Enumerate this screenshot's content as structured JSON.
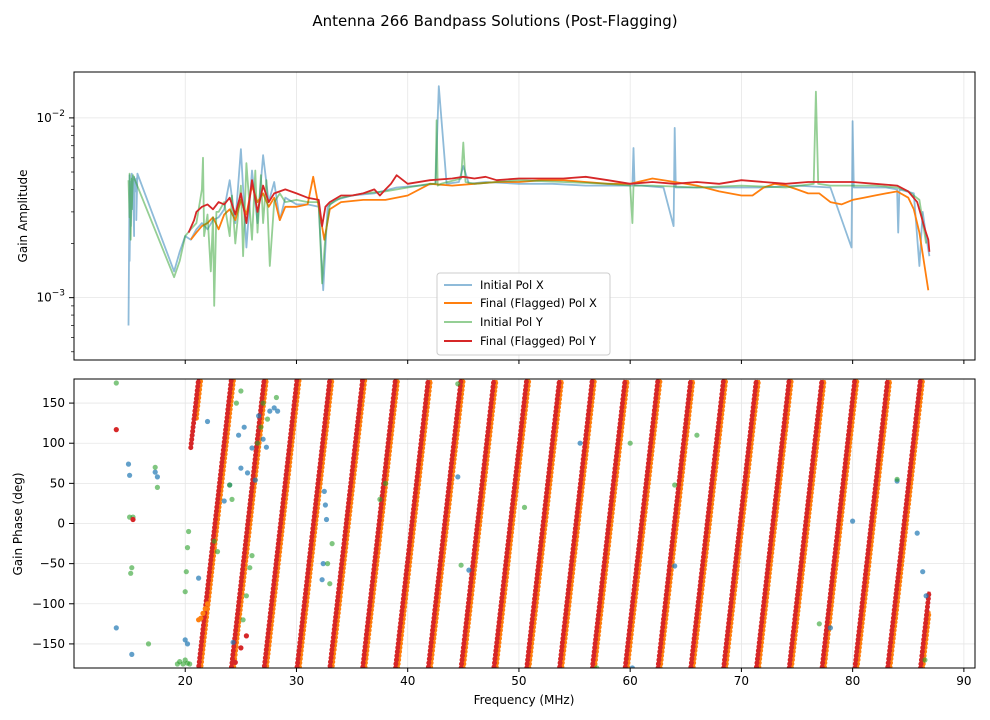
{
  "figure": {
    "title": "Antenna 266 Bandpass Solutions (Post-Flagging)"
  },
  "colors": {
    "initial_x": "#1f77b4",
    "final_x": "#ff7f0e",
    "initial_y": "#2ca02c",
    "final_y": "#d62728",
    "grid": "#e6e6e6",
    "axis": "#000000"
  },
  "chart_data": [
    {
      "type": "line",
      "panel": "amplitude",
      "xlabel": "",
      "ylabel": "Gain Amplitude",
      "xlim": [
        10,
        91
      ],
      "ylim": [
        0.00045,
        0.018
      ],
      "yscale": "log",
      "grid": true,
      "xticks": [
        20,
        30,
        40,
        50,
        60,
        70,
        80,
        90
      ],
      "yticks": [
        {
          "value": 0.001,
          "base": "10",
          "exp": "−3"
        },
        {
          "value": 0.01,
          "base": "10",
          "exp": "−2"
        }
      ],
      "legend": {
        "position": "lower-center",
        "entries": [
          "Initial Pol X",
          "Final (Flagged) Pol X",
          "Initial Pol Y",
          "Final (Flagged) Pol Y"
        ]
      },
      "series": [
        {
          "name": "Initial Pol X",
          "alpha": 0.5,
          "x": [
            14.9,
            15.0,
            15.0,
            15.1,
            15.1,
            15.2,
            15.3,
            15.3,
            15.4,
            15.4,
            15.5,
            15.6,
            15.6,
            15.7,
            19.0,
            19.5,
            20.0,
            20.5,
            21.0,
            21.5,
            22.0,
            22.5,
            23.0,
            23.5,
            24.0,
            24.5,
            25.0,
            25.5,
            26.0,
            26.5,
            27.0,
            27.5,
            28.0,
            28.5,
            29.0,
            30.0,
            31.0,
            32.0,
            32.4,
            32.8,
            33.5,
            35.0,
            37.0,
            39.0,
            41.0,
            42.5,
            42.8,
            43.5,
            44.6,
            45.0,
            45.5,
            47.0,
            50.0,
            53.0,
            56.0,
            59.0,
            60.2,
            60.3,
            60.4,
            61.0,
            63.0,
            63.9,
            64.0,
            64.1,
            66.0,
            69.0,
            72.0,
            75.0,
            78.0,
            79.9,
            80.0,
            80.1,
            81.0,
            83.0,
            84.0,
            84.1,
            84.2,
            85.5,
            86.0,
            86.3,
            86.6,
            86.9
          ],
          "y": [
            0.0007,
            0.0048,
            0.0016,
            0.0044,
            0.0025,
            0.0049,
            0.0031,
            0.0045,
            0.0022,
            0.0047,
            0.0039,
            0.0046,
            0.0027,
            0.0049,
            0.0014,
            0.0018,
            0.0022,
            0.0021,
            0.0024,
            0.0026,
            0.0024,
            0.0027,
            0.0028,
            0.0031,
            0.0045,
            0.0026,
            0.0067,
            0.0019,
            0.0051,
            0.0026,
            0.0062,
            0.0034,
            0.0044,
            0.0027,
            0.0036,
            0.0033,
            0.0033,
            0.0032,
            0.0011,
            0.0032,
            0.0035,
            0.0037,
            0.0038,
            0.0041,
            0.0042,
            0.0043,
            0.015,
            0.0043,
            0.0044,
            0.0054,
            0.0043,
            0.0044,
            0.0043,
            0.0043,
            0.0042,
            0.0042,
            0.0042,
            0.0068,
            0.0042,
            0.0042,
            0.0041,
            0.0025,
            0.0088,
            0.0041,
            0.0041,
            0.0041,
            0.0041,
            0.0042,
            0.0041,
            0.0019,
            0.0096,
            0.0041,
            0.0041,
            0.0041,
            0.004,
            0.0023,
            0.004,
            0.0038,
            0.0015,
            0.003,
            0.0022,
            0.0017
          ]
        },
        {
          "name": "Final (Flagged) Pol X",
          "alpha": 1.0,
          "x": [
            20.5,
            21.0,
            21.5,
            22.0,
            22.5,
            23.0,
            23.5,
            24.0,
            24.5,
            25.0,
            25.5,
            26.0,
            26.5,
            27.0,
            27.5,
            28.0,
            28.5,
            29.0,
            30.0,
            31.0,
            31.5,
            32.0,
            32.5,
            33.0,
            34.0,
            36.0,
            38.0,
            40.0,
            42.0,
            44.0,
            46.0,
            48.0,
            50.0,
            52.0,
            54.0,
            56.0,
            58.0,
            60.0,
            62.0,
            64.0,
            66.0,
            68.0,
            70.0,
            71.0,
            72.0,
            73.0,
            74.0,
            75.0,
            76.0,
            77.0,
            78.0,
            79.0,
            80.0,
            81.0,
            82.0,
            83.0,
            84.0,
            85.0,
            85.5,
            86.0,
            86.4,
            86.8
          ],
          "y": [
            0.0021,
            0.0023,
            0.0025,
            0.0026,
            0.0028,
            0.0024,
            0.0029,
            0.0031,
            0.0027,
            0.0035,
            0.0029,
            0.0042,
            0.0034,
            0.0038,
            0.0032,
            0.0036,
            0.0027,
            0.0032,
            0.0032,
            0.0033,
            0.0047,
            0.0032,
            0.0021,
            0.0031,
            0.0034,
            0.0035,
            0.0035,
            0.0037,
            0.0043,
            0.0042,
            0.0043,
            0.0044,
            0.0044,
            0.0045,
            0.0045,
            0.0044,
            0.0043,
            0.0043,
            0.0046,
            0.0044,
            0.0042,
            0.0039,
            0.0037,
            0.0037,
            0.0041,
            0.0043,
            0.0042,
            0.004,
            0.0038,
            0.0038,
            0.0034,
            0.0033,
            0.0035,
            0.0036,
            0.0037,
            0.0038,
            0.0039,
            0.0036,
            0.0031,
            0.0023,
            0.0016,
            0.0011
          ]
        },
        {
          "name": "Initial Pol Y",
          "alpha": 0.5,
          "x": [
            14.9,
            15.0,
            15.0,
            15.1,
            15.2,
            15.2,
            15.3,
            19.0,
            19.5,
            20.0,
            20.5,
            21.0,
            21.5,
            21.6,
            21.7,
            22.0,
            22.3,
            22.5,
            22.6,
            22.8,
            23.0,
            23.5,
            24.0,
            24.2,
            24.5,
            25.0,
            25.2,
            25.5,
            26.0,
            26.3,
            26.5,
            26.8,
            27.0,
            27.3,
            27.6,
            28.0,
            28.5,
            29.0,
            30.0,
            31.0,
            32.0,
            32.3,
            32.6,
            33.0,
            34.0,
            36.0,
            38.0,
            40.0,
            42.0,
            42.5,
            42.6,
            42.7,
            43.0,
            44.8,
            45.0,
            45.2,
            46.0,
            48.0,
            50.0,
            54.0,
            58.0,
            60.0,
            60.2,
            60.3,
            60.4,
            62.0,
            66.0,
            70.0,
            74.0,
            76.5,
            76.7,
            76.9,
            78.0,
            80.0,
            82.0,
            84.0,
            85.0,
            86.0,
            86.6
          ],
          "y": [
            0.0045,
            0.0028,
            0.0049,
            0.0021,
            0.0046,
            0.0031,
            0.0048,
            0.0013,
            0.0016,
            0.0022,
            0.0024,
            0.0026,
            0.004,
            0.006,
            0.0022,
            0.0029,
            0.0014,
            0.0028,
            0.0009,
            0.003,
            0.003,
            0.0034,
            0.0022,
            0.0037,
            0.002,
            0.0042,
            0.0017,
            0.0056,
            0.0021,
            0.0051,
            0.0023,
            0.0048,
            0.0026,
            0.0045,
            0.0015,
            0.0034,
            0.0038,
            0.0034,
            0.0035,
            0.0034,
            0.0034,
            0.0012,
            0.0022,
            0.0033,
            0.0036,
            0.0038,
            0.0039,
            0.0041,
            0.0043,
            0.0043,
            0.0097,
            0.0042,
            0.0043,
            0.0046,
            0.0073,
            0.0044,
            0.0043,
            0.0044,
            0.0045,
            0.0044,
            0.0043,
            0.0042,
            0.0026,
            0.0042,
            0.0042,
            0.0042,
            0.0041,
            0.0042,
            0.0041,
            0.0043,
            0.014,
            0.0043,
            0.0042,
            0.0042,
            0.0042,
            0.0041,
            0.0039,
            0.0035,
            0.002
          ]
        },
        {
          "name": "Final (Flagged) Pol Y",
          "alpha": 1.0,
          "x": [
            20.3,
            20.8,
            21.0,
            21.5,
            22.0,
            22.5,
            23.0,
            23.5,
            24.0,
            24.5,
            25.0,
            25.5,
            26.0,
            26.5,
            27.0,
            27.5,
            28.0,
            29.0,
            30.0,
            31.0,
            32.0,
            32.3,
            32.6,
            33.0,
            34.0,
            35.0,
            36.0,
            37.0,
            37.5,
            38.0,
            38.5,
            39.0,
            40.0,
            42.0,
            44.0,
            45.0,
            46.0,
            47.0,
            48.0,
            50.0,
            52.0,
            54.0,
            56.0,
            58.0,
            60.0,
            62.0,
            64.0,
            66.0,
            68.0,
            70.0,
            72.0,
            74.0,
            76.0,
            78.0,
            80.0,
            82.0,
            84.0,
            85.0,
            85.8,
            86.2,
            86.5,
            86.8,
            86.9
          ],
          "y": [
            0.0023,
            0.0027,
            0.003,
            0.0032,
            0.0033,
            0.0031,
            0.0034,
            0.0033,
            0.0036,
            0.0029,
            0.0038,
            0.0026,
            0.0045,
            0.003,
            0.0042,
            0.0034,
            0.0038,
            0.004,
            0.0038,
            0.0036,
            0.0035,
            0.0025,
            0.0032,
            0.0034,
            0.0037,
            0.0037,
            0.0038,
            0.004,
            0.0037,
            0.004,
            0.0043,
            0.0048,
            0.0043,
            0.0045,
            0.0046,
            0.0047,
            0.0046,
            0.0047,
            0.0045,
            0.0046,
            0.0046,
            0.0046,
            0.0047,
            0.0045,
            0.0043,
            0.0044,
            0.0043,
            0.0044,
            0.0043,
            0.0045,
            0.0044,
            0.0043,
            0.0044,
            0.0044,
            0.0044,
            0.0043,
            0.0042,
            0.0039,
            0.0034,
            0.0028,
            0.0024,
            0.0021,
            0.0018
          ]
        }
      ]
    },
    {
      "type": "scatter",
      "panel": "phase",
      "xlabel": "Frequency (MHz)",
      "ylabel": "Gain Phase (deg)",
      "xlim": [
        10,
        91
      ],
      "ylim": [
        -180,
        180
      ],
      "grid": true,
      "xticks": [
        20,
        30,
        40,
        50,
        60,
        70,
        80,
        90
      ],
      "yticks": [
        -150,
        -100,
        -50,
        0,
        50,
        100,
        150
      ],
      "phase_wrap_lines": {
        "final_x": {
          "f0": 21.4,
          "period_mhz": 2.95,
          "f_start": 21.0,
          "f_end": 86.9
        },
        "final_y": {
          "f0": 21.2,
          "period_mhz": 2.95,
          "f_start": 20.5,
          "f_end": 86.9
        }
      },
      "series": [
        {
          "name": "Initial Pol X",
          "alpha": 0.7,
          "x": [
            13.8,
            14.9,
            15.0,
            15.2,
            17.3,
            17.5,
            20.0,
            20.2,
            21.2,
            22.0,
            23.5,
            24.0,
            24.3,
            24.8,
            25.0,
            25.3,
            25.6,
            26.0,
            26.3,
            26.6,
            27.0,
            27.3,
            27.6,
            28.0,
            28.3,
            32.5,
            32.6,
            32.7,
            32.3,
            32.4,
            44.5,
            45.5,
            55.5,
            60.2,
            64.0,
            78.0,
            80.0,
            84.0,
            85.8,
            86.3,
            86.6
          ],
          "y": [
            -130,
            74,
            60,
            -163,
            64,
            58,
            -145,
            -150,
            -68,
            127,
            28,
            48,
            -148,
            110,
            69,
            120,
            63,
            94,
            54,
            134,
            105,
            95,
            140,
            144,
            140,
            40,
            23,
            5,
            -70,
            -50,
            58,
            -58,
            100,
            -180,
            -53,
            -130,
            3,
            53,
            -12,
            -60,
            -90
          ]
        },
        {
          "name": "Final (Flagged) Pol X",
          "alpha": 1.0,
          "x": [
            21.2,
            21.4,
            21.6,
            21.8,
            22.0
          ],
          "y": [
            -120,
            -118,
            -112,
            -106,
            -100
          ]
        },
        {
          "name": "Initial Pol Y",
          "alpha": 0.6,
          "x": [
            13.8,
            15.0,
            15.1,
            15.2,
            15.3,
            16.7,
            17.3,
            17.5,
            19.3,
            19.5,
            19.8,
            20.0,
            20.2,
            20.4,
            20.0,
            20.1,
            20.2,
            20.3,
            22.6,
            22.9,
            24.0,
            24.2,
            24.6,
            25.0,
            25.2,
            25.5,
            25.8,
            26.0,
            26.5,
            26.8,
            27.0,
            27.4,
            28.2,
            32.8,
            33.0,
            33.2,
            37.5,
            38.0,
            44.5,
            44.8,
            50.5,
            57.0,
            60.0,
            64.0,
            66.0,
            77.0,
            84.0,
            86.5
          ],
          "y": [
            175,
            8,
            -62,
            -55,
            8,
            -150,
            70,
            45,
            -175,
            -172,
            -175,
            -170,
            -174,
            -175,
            -85,
            -60,
            -30,
            -10,
            -22,
            -35,
            48,
            30,
            150,
            165,
            -120,
            -90,
            -55,
            -40,
            100,
            120,
            150,
            130,
            157,
            -50,
            -75,
            -25,
            30,
            50,
            174,
            -52,
            20,
            -180,
            100,
            48,
            110,
            -125,
            55,
            -170
          ]
        },
        {
          "name": "Final (Flagged) Pol Y",
          "alpha": 1.0,
          "x": [
            13.8,
            15.3,
            24.5,
            25.0,
            25.5
          ],
          "y": [
            117,
            5,
            -173,
            -155,
            -140
          ]
        }
      ]
    }
  ]
}
